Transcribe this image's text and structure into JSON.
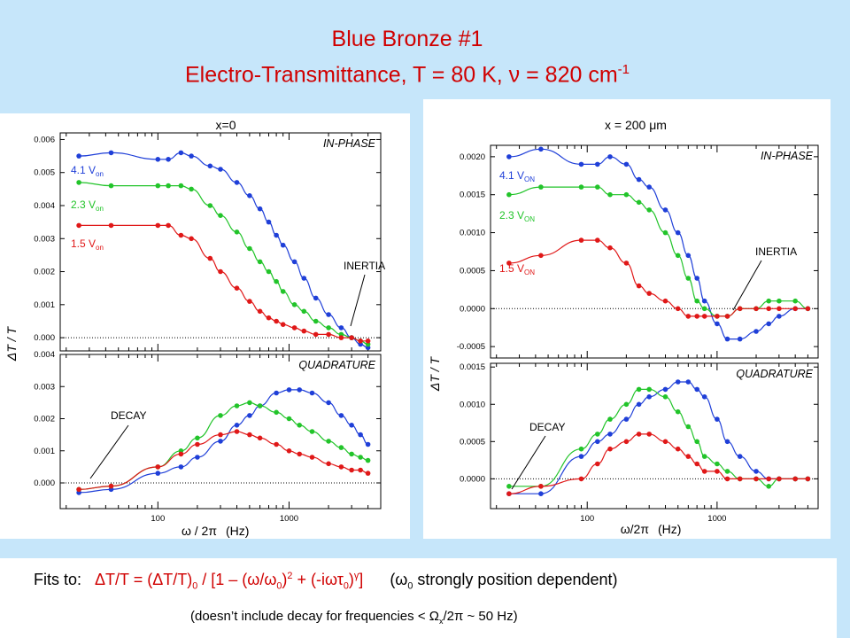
{
  "title": {
    "line1": "Blue Bronze #1",
    "line2_prefix": "Electro-Transmittance, T = 80 K, ",
    "line2_nu": "ν",
    "line2_mid": " = 820 cm",
    "line2_sup": "-1"
  },
  "colors": {
    "blue": "#1f3fd8",
    "green": "#22c42a",
    "red": "#e01818",
    "dotted": "#000000",
    "title": "#d00000"
  },
  "left": {
    "header": "x=0",
    "ylabel": "ΔT / T",
    "xlabel_omega": "ω / 2π",
    "xlabel_unit": "(Hz)",
    "top": {
      "label": "IN-PHASE",
      "ticks": [
        "0.006",
        "0.005",
        "0.004",
        "0.003",
        "0.002",
        "0.001",
        "0.000"
      ],
      "ylim": [
        -0.0004,
        0.0062
      ]
    },
    "bottom": {
      "label": "QUADRATURE",
      "ticks": [
        "0.004",
        "0.003",
        "0.002",
        "0.001",
        "0.000"
      ],
      "ylim": [
        -0.0008,
        0.004
      ]
    },
    "xticks": [
      "100",
      "1000"
    ],
    "xlim": [
      18,
      5000
    ],
    "inertia": "INERTIA",
    "decay": "DECAY",
    "volt": [
      {
        "v": "4.1 V",
        "sub": "on",
        "color": "blue"
      },
      {
        "v": "2.3 V",
        "sub": "on",
        "color": "green"
      },
      {
        "v": "1.5 V",
        "sub": "on",
        "color": "red"
      }
    ]
  },
  "right": {
    "header": "x = 200 μm",
    "ylabel": "ΔT / T",
    "xlabel_omega": "ω/2π",
    "xlabel_unit": "(Hz)",
    "top": {
      "label": "IN-PHASE",
      "ticks": [
        "0.0020",
        "0.0015",
        "0.0010",
        "0.0005",
        "0.0000",
        "-0.0005"
      ],
      "ylim": [
        -0.00065,
        0.00215
      ]
    },
    "bottom": {
      "label": "QUADRATURE",
      "ticks": [
        "0.0015",
        "0.0010",
        "0.0005",
        "0.0000"
      ],
      "ylim": [
        -0.0004,
        0.00155
      ]
    },
    "xticks": [
      "100",
      "1000"
    ],
    "xlim": [
      18,
      6000
    ],
    "inertia": "INERTIA",
    "decay": "DECAY",
    "volt": [
      {
        "v": "4.1 V",
        "sub": "ON",
        "color": "blue"
      },
      {
        "v": "2.3 V",
        "sub": "ON",
        "color": "green"
      },
      {
        "v": "1.5 V",
        "sub": "ON",
        "color": "red"
      }
    ]
  },
  "chart_data": [
    {
      "type": "scatter",
      "title": "x=0 IN-PHASE",
      "ylabel": "ΔT / T",
      "xlabel": "ω / 2π (Hz)",
      "xscale": "log",
      "xlim": [
        18,
        5000
      ],
      "ylim": [
        -0.0004,
        0.0062
      ],
      "series": [
        {
          "name": "4.1 Von",
          "color": "blue",
          "x": [
            25,
            44,
            100,
            120,
            150,
            180,
            250,
            300,
            400,
            500,
            600,
            700,
            800,
            900,
            1100,
            1300,
            1600,
            2000,
            2500,
            3000,
            3500,
            4000
          ],
          "y": [
            0.0055,
            0.0056,
            0.0054,
            0.0054,
            0.0056,
            0.0055,
            0.0052,
            0.0051,
            0.0047,
            0.0043,
            0.0039,
            0.0035,
            0.0031,
            0.0028,
            0.0023,
            0.0018,
            0.0012,
            0.0007,
            0.0003,
            0.0,
            -0.0002,
            -0.0003
          ]
        },
        {
          "name": "2.3 Von",
          "color": "green",
          "x": [
            25,
            44,
            100,
            120,
            150,
            180,
            250,
            300,
            400,
            500,
            600,
            700,
            800,
            900,
            1100,
            1300,
            1600,
            2000,
            2500,
            3000,
            3500,
            4000
          ],
          "y": [
            0.0047,
            0.0046,
            0.0046,
            0.0046,
            0.0046,
            0.0045,
            0.004,
            0.0037,
            0.0032,
            0.0027,
            0.0023,
            0.002,
            0.0017,
            0.0014,
            0.001,
            0.0008,
            0.0005,
            0.0003,
            0.0001,
            0.0,
            -0.0001,
            -0.0002
          ]
        },
        {
          "name": "1.5 Von",
          "color": "red",
          "x": [
            25,
            44,
            100,
            120,
            150,
            180,
            250,
            300,
            400,
            500,
            600,
            700,
            800,
            900,
            1100,
            1300,
            1600,
            2000,
            2500,
            3000,
            3500,
            4000
          ],
          "y": [
            0.0034,
            0.0034,
            0.0034,
            0.0034,
            0.0031,
            0.003,
            0.0024,
            0.002,
            0.0015,
            0.0011,
            0.0008,
            0.0006,
            0.0005,
            0.0004,
            0.0003,
            0.0002,
            0.0001,
            0.0001,
            0.0,
            0.0,
            -0.0001,
            -0.0001
          ]
        }
      ]
    },
    {
      "type": "scatter",
      "title": "x=0 QUADRATURE",
      "ylabel": "ΔT / T",
      "xlabel": "ω / 2π (Hz)",
      "xscale": "log",
      "xlim": [
        18,
        5000
      ],
      "ylim": [
        -0.0008,
        0.004
      ],
      "series": [
        {
          "name": "4.1 Von",
          "color": "blue",
          "x": [
            25,
            44,
            100,
            150,
            200,
            300,
            400,
            500,
            600,
            800,
            1000,
            1200,
            1500,
            2000,
            2500,
            3000,
            3500,
            4000
          ],
          "y": [
            -0.0003,
            -0.0002,
            0.0003,
            0.0005,
            0.0008,
            0.0013,
            0.0018,
            0.0021,
            0.0024,
            0.0028,
            0.0029,
            0.0029,
            0.0028,
            0.0025,
            0.0021,
            0.0018,
            0.0015,
            0.0012
          ]
        },
        {
          "name": "2.3 Von",
          "color": "green",
          "x": [
            25,
            44,
            100,
            150,
            200,
            300,
            400,
            500,
            600,
            800,
            1000,
            1200,
            1500,
            2000,
            2500,
            3000,
            3500,
            4000
          ],
          "y": [
            -0.0002,
            -0.0001,
            0.0005,
            0.001,
            0.0014,
            0.0021,
            0.0024,
            0.0025,
            0.0024,
            0.0022,
            0.002,
            0.0018,
            0.0016,
            0.0013,
            0.0011,
            0.0009,
            0.0008,
            0.0007
          ]
        },
        {
          "name": "1.5 Von",
          "color": "red",
          "x": [
            25,
            44,
            100,
            150,
            200,
            300,
            400,
            500,
            600,
            800,
            1000,
            1200,
            1500,
            2000,
            2500,
            3000,
            3500,
            4000
          ],
          "y": [
            -0.0002,
            -0.0001,
            0.0005,
            0.0009,
            0.0012,
            0.0015,
            0.0016,
            0.0015,
            0.0014,
            0.0012,
            0.001,
            0.0009,
            0.0008,
            0.0006,
            0.0005,
            0.0004,
            0.0004,
            0.0003
          ]
        }
      ]
    },
    {
      "type": "scatter",
      "title": "x = 200 μm IN-PHASE",
      "ylabel": "ΔT / T",
      "xlabel": "ω/2π (Hz)",
      "xscale": "log",
      "xlim": [
        18,
        6000
      ],
      "ylim": [
        -0.00065,
        0.00215
      ],
      "series": [
        {
          "name": "4.1 VON",
          "color": "blue",
          "x": [
            25,
            44,
            90,
            120,
            150,
            200,
            250,
            300,
            400,
            500,
            600,
            700,
            800,
            1000,
            1200,
            1500,
            2000,
            2500,
            3000,
            4000,
            5000
          ],
          "y": [
            0.002,
            0.0021,
            0.0019,
            0.0019,
            0.002,
            0.0019,
            0.0017,
            0.0016,
            0.0013,
            0.001,
            0.0007,
            0.0004,
            0.0001,
            -0.0002,
            -0.0004,
            -0.0004,
            -0.0003,
            -0.0002,
            -0.0001,
            0.0,
            0.0
          ]
        },
        {
          "name": "2.3 VON",
          "color": "green",
          "x": [
            25,
            44,
            90,
            120,
            150,
            200,
            250,
            300,
            400,
            500,
            600,
            700,
            800,
            1000,
            1200,
            1500,
            2000,
            2500,
            3000,
            4000,
            5000
          ],
          "y": [
            0.0015,
            0.0016,
            0.0016,
            0.0016,
            0.0015,
            0.0015,
            0.0014,
            0.0013,
            0.001,
            0.0007,
            0.0004,
            0.0001,
            0.0,
            -0.0001,
            -0.0001,
            0.0,
            0.0,
            0.0001,
            0.0001,
            0.0001,
            0.0
          ]
        },
        {
          "name": "1.5 VON",
          "color": "red",
          "x": [
            25,
            44,
            90,
            120,
            150,
            200,
            250,
            300,
            400,
            500,
            600,
            700,
            800,
            1000,
            1200,
            1500,
            2000,
            2500,
            3000,
            4000,
            5000
          ],
          "y": [
            0.0006,
            0.0007,
            0.0009,
            0.0009,
            0.0008,
            0.0006,
            0.0003,
            0.0002,
            0.0001,
            0.0,
            -0.0001,
            -0.0001,
            -0.0001,
            -0.0001,
            -0.0001,
            0.0,
            0.0,
            0.0,
            0.0,
            0.0,
            0.0
          ]
        }
      ]
    },
    {
      "type": "scatter",
      "title": "x = 200 μm QUADRATURE",
      "ylabel": "ΔT / T",
      "xlabel": "ω/2π (Hz)",
      "xscale": "log",
      "xlim": [
        18,
        6000
      ],
      "ylim": [
        -0.0004,
        0.00155
      ],
      "series": [
        {
          "name": "4.1 VON",
          "color": "blue",
          "x": [
            25,
            44,
            90,
            120,
            150,
            200,
            250,
            300,
            400,
            500,
            600,
            700,
            800,
            1000,
            1200,
            1500,
            2000,
            2500,
            3000,
            4000,
            5000
          ],
          "y": [
            -0.0002,
            -0.0002,
            0.0003,
            0.0005,
            0.0006,
            0.0008,
            0.001,
            0.0011,
            0.0012,
            0.0013,
            0.0013,
            0.0012,
            0.0011,
            0.0008,
            0.0005,
            0.0003,
            0.0001,
            0.0,
            0.0,
            0.0,
            0.0
          ]
        },
        {
          "name": "2.3 VON",
          "color": "green",
          "x": [
            25,
            44,
            90,
            120,
            150,
            200,
            250,
            300,
            400,
            500,
            600,
            700,
            800,
            1000,
            1200,
            1500,
            2000,
            2500,
            3000,
            4000,
            5000
          ],
          "y": [
            -0.0001,
            -0.0001,
            0.0004,
            0.0006,
            0.0008,
            0.001,
            0.0012,
            0.0012,
            0.0011,
            0.0009,
            0.0007,
            0.0005,
            0.0003,
            0.0002,
            0.0001,
            0.0,
            0.0,
            -0.0001,
            0.0,
            0.0,
            0.0
          ]
        },
        {
          "name": "1.5 VON",
          "color": "red",
          "x": [
            25,
            44,
            90,
            120,
            150,
            200,
            250,
            300,
            400,
            500,
            600,
            700,
            800,
            1000,
            1200,
            1500,
            2000,
            2500,
            3000,
            4000,
            5000
          ],
          "y": [
            -0.0002,
            -0.0001,
            0.0,
            0.0002,
            0.0004,
            0.0005,
            0.0006,
            0.0006,
            0.0005,
            0.0004,
            0.0003,
            0.0002,
            0.0001,
            0.0001,
            0.0,
            0.0,
            0.0,
            0.0,
            0.0,
            0.0,
            0.0
          ]
        }
      ]
    }
  ],
  "footer": {
    "fits_label": "Fits to:",
    "formula_html": "ΔT/T = (ΔT/T)<sub>0</sub> / [1 – (ω/ω<sub>0</sub>)<sup>2</sup> + (-iωτ<sub>0</sub>)<sup>γ</sup>]",
    "position_note": "(ω<sub>0</sub> strongly position dependent)",
    "decay_note": "(doesn’t include decay for frequencies < Ω<sub>x</sub>/2π ~ 50 Hz)"
  }
}
